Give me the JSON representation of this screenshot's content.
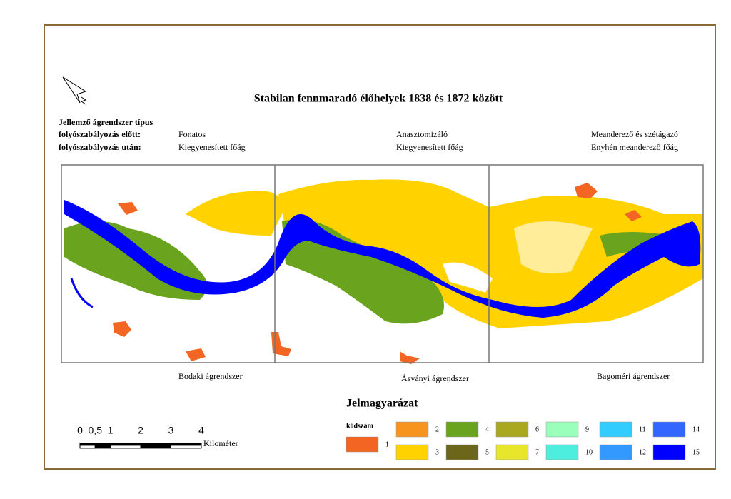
{
  "title": "Stabilan fennmaradó élőhelyek 1838 és 1872 között",
  "header": {
    "label": "Jellemző ágrendszer típus",
    "before_label": "folyószabályozás előtt:",
    "after_label": "folyószabályozás után:"
  },
  "sections": [
    {
      "before": "Fonatos",
      "after": "Kiegyenesített főág",
      "name": "Bodaki ágrendszer"
    },
    {
      "before": "Anasztomizáló",
      "after": "Kiegyenesített főág",
      "name": "Ásványi ágrendszer"
    },
    {
      "before": "Meanderező és szétágazó",
      "after": "Enyhén meanderező főág",
      "name": "Bagoméri ágrendszer"
    }
  ],
  "scale_bar": {
    "ticks": [
      0,
      {
        "value": 0.5,
        "label": "0,5"
      },
      1,
      2,
      3,
      4
    ],
    "unit": "Kilométer"
  },
  "legend": {
    "title": "Jelmagyarázat",
    "code_label": "kódszám",
    "items": [
      {
        "code": 1,
        "color": "#f26522"
      },
      {
        "code": 2,
        "color": "#f7941d"
      },
      {
        "code": 3,
        "color": "#ffd200"
      },
      {
        "code": 4,
        "color": "#6aa41e"
      },
      {
        "code": 5,
        "color": "#6b661a"
      },
      {
        "code": 6,
        "color": "#aaa81e"
      },
      {
        "code": 7,
        "color": "#e8e62a"
      },
      {
        "code": 9,
        "color": "#99ffbb"
      },
      {
        "code": 10,
        "color": "#4deedd"
      },
      {
        "code": 11,
        "color": "#33ccff"
      },
      {
        "code": 12,
        "color": "#3399ff"
      },
      {
        "code": 14,
        "color": "#3366ff"
      },
      {
        "code": 15,
        "color": "#0000ff"
      }
    ]
  }
}
